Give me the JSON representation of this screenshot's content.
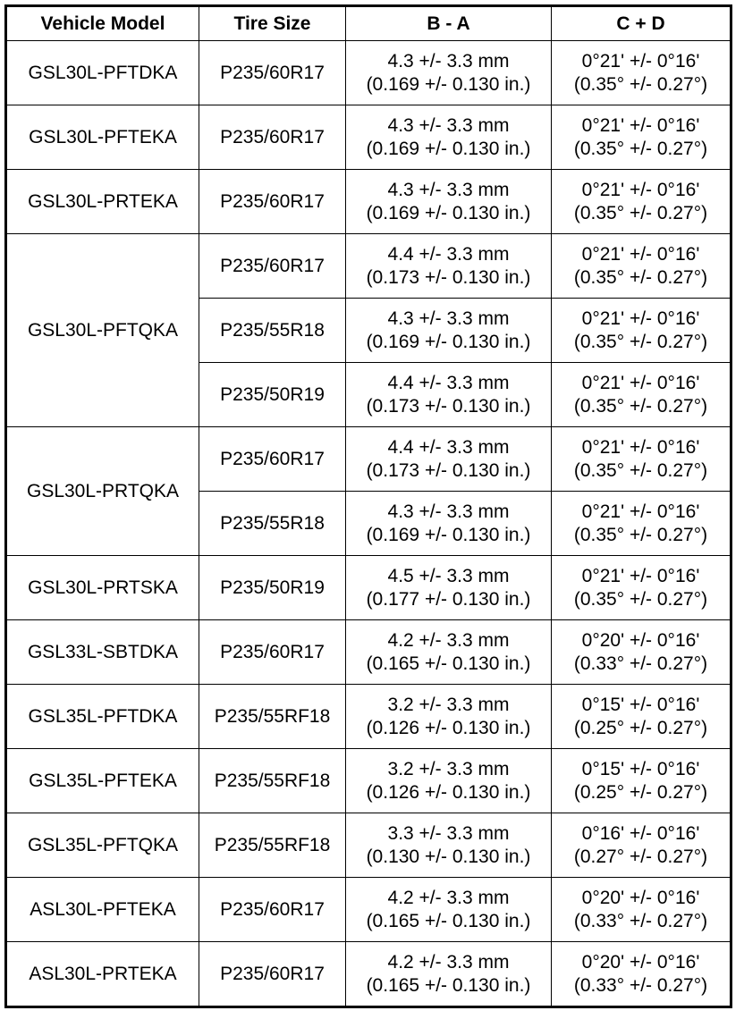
{
  "headers": [
    "Vehicle Model",
    "Tire Size",
    "B - A",
    "C + D"
  ],
  "groups": [
    {
      "model": "GSL30L-PFTDKA",
      "variants": [
        {
          "tire": "P235/60R17",
          "ba_mm": "4.3 +/- 3.3 mm",
          "ba_in": "(0.169 +/- 0.130 in.)",
          "cd_dm": "0°21' +/- 0°16'",
          "cd_deg": "(0.35° +/- 0.27°)"
        }
      ]
    },
    {
      "model": "GSL30L-PFTEKA",
      "variants": [
        {
          "tire": "P235/60R17",
          "ba_mm": "4.3 +/- 3.3 mm",
          "ba_in": "(0.169 +/- 0.130 in.)",
          "cd_dm": "0°21' +/- 0°16'",
          "cd_deg": "(0.35° +/- 0.27°)"
        }
      ]
    },
    {
      "model": "GSL30L-PRTEKA",
      "variants": [
        {
          "tire": "P235/60R17",
          "ba_mm": "4.3 +/- 3.3 mm",
          "ba_in": "(0.169 +/- 0.130 in.)",
          "cd_dm": "0°21' +/- 0°16'",
          "cd_deg": "(0.35° +/- 0.27°)"
        }
      ]
    },
    {
      "model": "GSL30L-PFTQKA",
      "variants": [
        {
          "tire": "P235/60R17",
          "ba_mm": "4.4 +/- 3.3 mm",
          "ba_in": "(0.173 +/- 0.130 in.)",
          "cd_dm": "0°21' +/- 0°16'",
          "cd_deg": "(0.35° +/- 0.27°)"
        },
        {
          "tire": "P235/55R18",
          "ba_mm": "4.3 +/- 3.3 mm",
          "ba_in": "(0.169 +/- 0.130 in.)",
          "cd_dm": "0°21' +/- 0°16'",
          "cd_deg": "(0.35° +/- 0.27°)"
        },
        {
          "tire": "P235/50R19",
          "ba_mm": "4.4 +/- 3.3 mm",
          "ba_in": "(0.173 +/- 0.130 in.)",
          "cd_dm": "0°21' +/- 0°16'",
          "cd_deg": "(0.35° +/- 0.27°)"
        }
      ]
    },
    {
      "model": "GSL30L-PRTQKA",
      "variants": [
        {
          "tire": "P235/60R17",
          "ba_mm": "4.4 +/- 3.3 mm",
          "ba_in": "(0.173 +/- 0.130 in.)",
          "cd_dm": "0°21' +/- 0°16'",
          "cd_deg": "(0.35° +/- 0.27°)"
        },
        {
          "tire": "P235/55R18",
          "ba_mm": "4.3 +/- 3.3 mm",
          "ba_in": "(0.169 +/- 0.130 in.)",
          "cd_dm": "0°21' +/- 0°16'",
          "cd_deg": "(0.35° +/- 0.27°)"
        }
      ]
    },
    {
      "model": "GSL30L-PRTSKA",
      "variants": [
        {
          "tire": "P235/50R19",
          "ba_mm": "4.5 +/- 3.3 mm",
          "ba_in": "(0.177 +/- 0.130 in.)",
          "cd_dm": "0°21' +/- 0°16'",
          "cd_deg": "(0.35° +/- 0.27°)"
        }
      ]
    },
    {
      "model": "GSL33L-SBTDKA",
      "variants": [
        {
          "tire": "P235/60R17",
          "ba_mm": "4.2 +/- 3.3 mm",
          "ba_in": "(0.165 +/- 0.130 in.)",
          "cd_dm": "0°20' +/- 0°16'",
          "cd_deg": "(0.33° +/- 0.27°)"
        }
      ]
    },
    {
      "model": "GSL35L-PFTDKA",
      "variants": [
        {
          "tire": "P235/55RF18",
          "ba_mm": "3.2 +/- 3.3 mm",
          "ba_in": "(0.126 +/- 0.130 in.)",
          "cd_dm": "0°15' +/- 0°16'",
          "cd_deg": "(0.25° +/- 0.27°)"
        }
      ]
    },
    {
      "model": "GSL35L-PFTEKA",
      "variants": [
        {
          "tire": "P235/55RF18",
          "ba_mm": "3.2 +/- 3.3 mm",
          "ba_in": "(0.126 +/- 0.130 in.)",
          "cd_dm": "0°15' +/- 0°16'",
          "cd_deg": "(0.25° +/- 0.27°)"
        }
      ]
    },
    {
      "model": "GSL35L-PFTQKA",
      "variants": [
        {
          "tire": "P235/55RF18",
          "ba_mm": "3.3 +/- 3.3 mm",
          "ba_in": "(0.130 +/- 0.130 in.)",
          "cd_dm": "0°16' +/- 0°16'",
          "cd_deg": "(0.27° +/- 0.27°)"
        }
      ]
    },
    {
      "model": "ASL30L-PFTEKA",
      "variants": [
        {
          "tire": "P235/60R17",
          "ba_mm": "4.2 +/- 3.3 mm",
          "ba_in": "(0.165 +/- 0.130 in.)",
          "cd_dm": "0°20' +/- 0°16'",
          "cd_deg": "(0.33° +/- 0.27°)"
        }
      ]
    },
    {
      "model": "ASL30L-PRTEKA",
      "variants": [
        {
          "tire": "P235/60R17",
          "ba_mm": "4.2 +/- 3.3 mm",
          "ba_in": "(0.165 +/- 0.130 in.)",
          "cd_dm": "0°20' +/- 0°16'",
          "cd_deg": "(0.33° +/- 0.27°)"
        }
      ]
    }
  ]
}
